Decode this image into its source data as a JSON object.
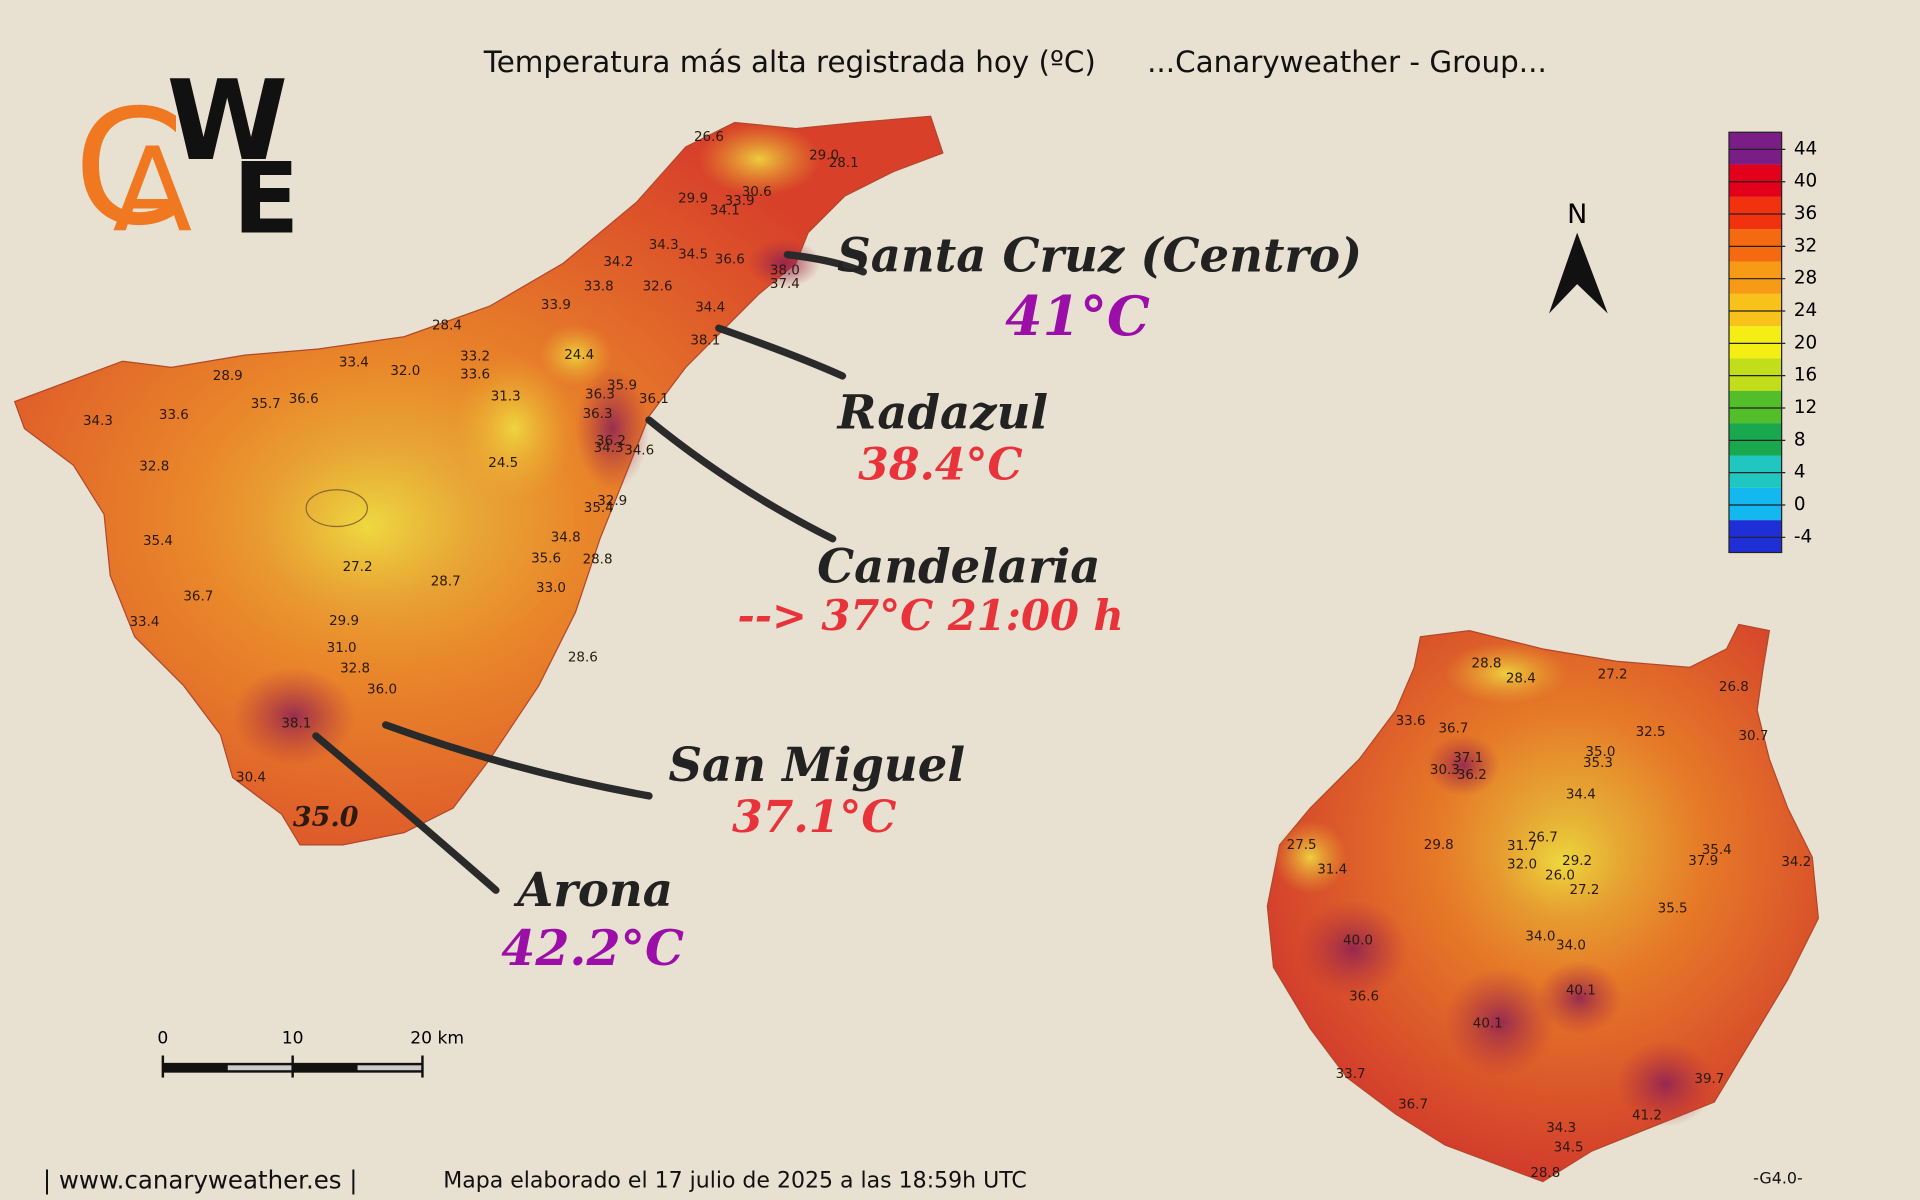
{
  "header": {
    "title": "Temperatura más alta registrada hoy (ºC)",
    "group": "...Canaryweather - Group...",
    "logo": [
      "C",
      "A",
      "W",
      "E"
    ]
  },
  "north": "N",
  "legend": {
    "ticks": [
      44,
      40,
      36,
      32,
      28,
      24,
      20,
      16,
      12,
      8,
      4,
      0,
      -4
    ],
    "colors": [
      "#7b1d86",
      "#e3001b",
      "#f2320f",
      "#f56a10",
      "#f79a16",
      "#f8c21a",
      "#f4ee14",
      "#c2dd1a",
      "#52bf2a",
      "#1aa84e",
      "#1fc7c0",
      "#14b8f0",
      "#1f2fd8"
    ]
  },
  "callouts": [
    {
      "name": "Santa Cruz (Centro)",
      "value": "41°C",
      "color": "#9b0fa8"
    },
    {
      "name": "Radazul",
      "value": "38.4°C",
      "color": "#e8333a"
    },
    {
      "name": "Candelaria",
      "value": "--> 37°C 21:00 h",
      "color": "#e8333a"
    },
    {
      "name": "San Miguel",
      "value": "37.1°C",
      "color": "#e8333a"
    },
    {
      "name": "Arona",
      "value": "42.2°C",
      "color": "#9b0fa8"
    }
  ],
  "tenerife_stations": [
    "26.6",
    "29.0",
    "28.1",
    "29.9",
    "33.9",
    "30.6",
    "34.1",
    "34.3",
    "34.5",
    "36.6",
    "38.0",
    "37.4",
    "34.2",
    "33.8",
    "32.6",
    "33.9",
    "34.4",
    "38.1",
    "28.4",
    "33.4",
    "32.0",
    "33.2",
    "33.6",
    "24.4",
    "28.9",
    "35.7",
    "36.6",
    "31.3",
    "35.9",
    "36.3",
    "36.1",
    "36.3",
    "34.3",
    "33.6",
    "36.2",
    "34.3",
    "34.6",
    "24.5",
    "32.8",
    "32.9",
    "35.4",
    "35.4",
    "34.8",
    "35.6",
    "28.8",
    "27.2",
    "28.7",
    "33.0",
    "36.7",
    "29.9",
    "33.4",
    "31.0",
    "28.6",
    "32.8",
    "36.0",
    "38.1",
    "30.4",
    "35.0"
  ],
  "gran_canaria_stations": [
    "28.8",
    "28.4",
    "27.2",
    "26.8",
    "33.6",
    "36.7",
    "32.5",
    "30.7",
    "35.0",
    "37.1",
    "35.3",
    "30.3",
    "36.2",
    "34.4",
    "26.7",
    "27.5",
    "29.8",
    "31.7",
    "29.2",
    "35.4",
    "34.2",
    "32.0",
    "37.9",
    "26.0",
    "31.4",
    "27.2",
    "35.5",
    "34.0",
    "34.0",
    "40.0",
    "40.1",
    "36.6",
    "40.1",
    "33.7",
    "39.7",
    "36.7",
    "41.2",
    "34.3",
    "34.5",
    "28.8"
  ],
  "scale_bar": [
    "0",
    "10",
    "20 km"
  ],
  "footer": {
    "site": "| www.canaryweather.es |",
    "made": "Mapa elaborado el 17 julio de 2025 a las 18:59h UTC",
    "version": "-G4.0-"
  }
}
